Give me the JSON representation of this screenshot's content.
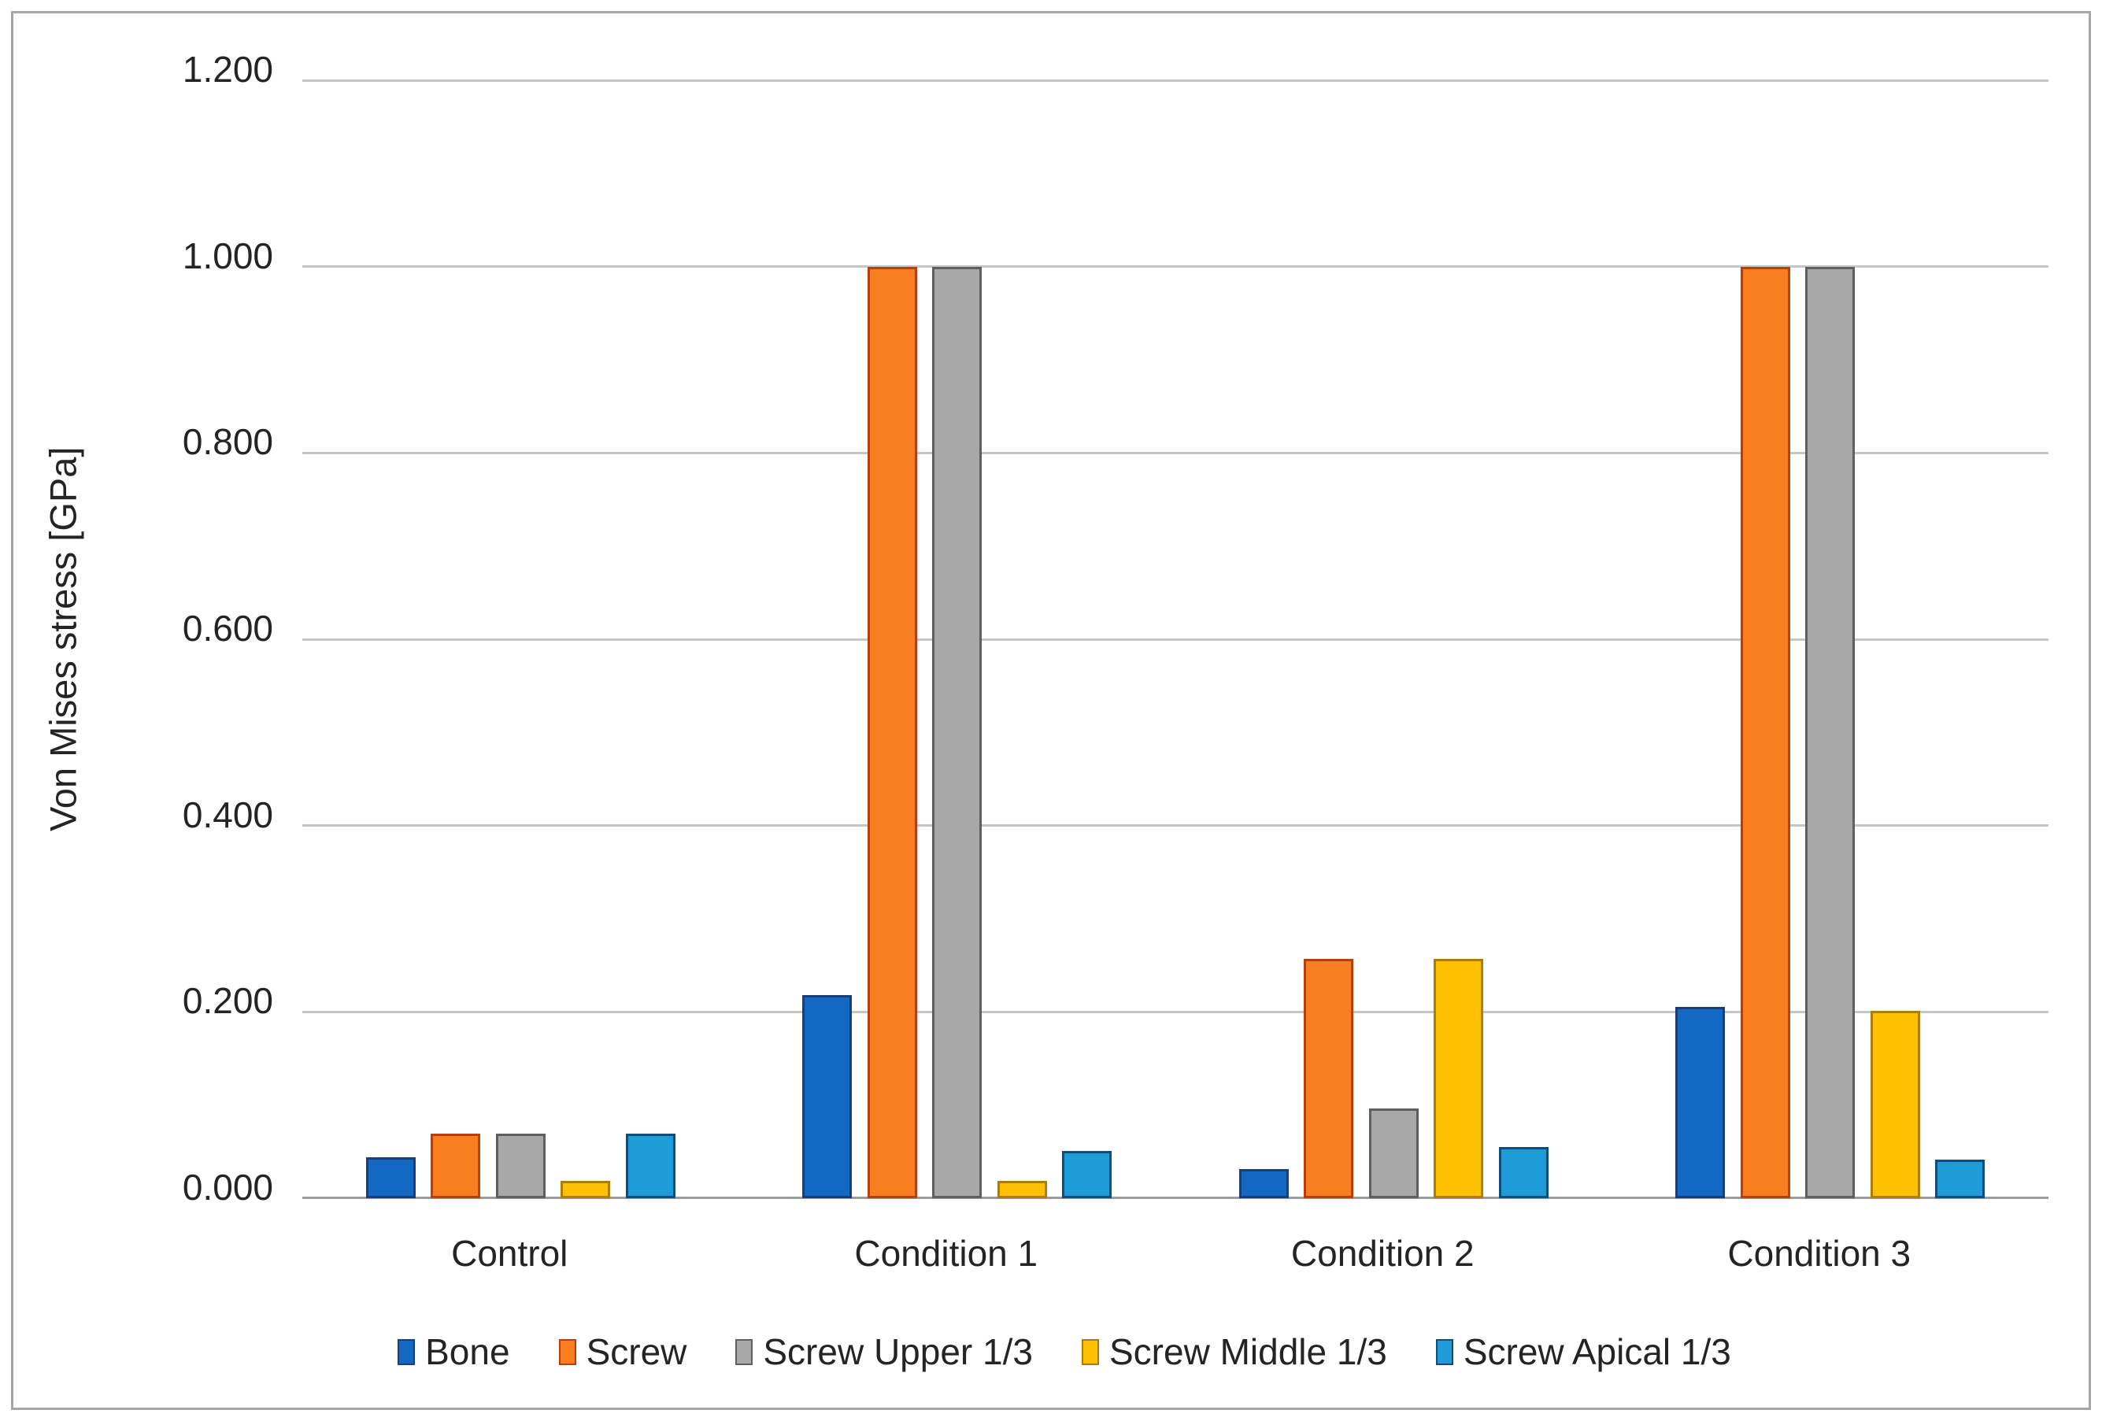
{
  "chart_data": {
    "type": "bar",
    "title": "",
    "xlabel": "",
    "ylabel": "Von Mises stress [GPa]",
    "categories": [
      "Control",
      "Condition 1",
      "Condition 2",
      "Condition 3"
    ],
    "series": [
      {
        "name": "Bone",
        "fill": "#1268C3",
        "border": "#1A3E77",
        "values": [
          0.044,
          0.218,
          0.031,
          0.205
        ]
      },
      {
        "name": "Screw",
        "fill": "#F97E1F",
        "border": "#B93F0A",
        "values": [
          0.069,
          1.0,
          0.257,
          1.0
        ]
      },
      {
        "name": "Screw Upper 1/3",
        "fill": "#A8A8A8",
        "border": "#5F5F5F",
        "values": [
          0.069,
          1.0,
          0.096,
          1.0
        ]
      },
      {
        "name": "Screw Middle 1/3",
        "fill": "#FFC001",
        "border": "#AD7D00",
        "values": [
          0.019,
          0.019,
          0.257,
          0.201
        ]
      },
      {
        "name": "Screw Apical 1/3",
        "fill": "#1E9CD8",
        "border": "#0C4D7C",
        "values": [
          0.069,
          0.051,
          0.055,
          0.041
        ]
      }
    ],
    "ylim": [
      0,
      1.2
    ],
    "yticks": [
      "0.000",
      "0.200",
      "0.400",
      "0.600",
      "0.800",
      "1.000",
      "1.200"
    ],
    "grid": true,
    "legend_position": "bottom"
  },
  "colors": {
    "gridline": "#C6C6C6",
    "axis_line": "#9B9B9B",
    "text": "#242424",
    "chart_border": "#A6A6A6",
    "background": "#FFFFFF"
  }
}
